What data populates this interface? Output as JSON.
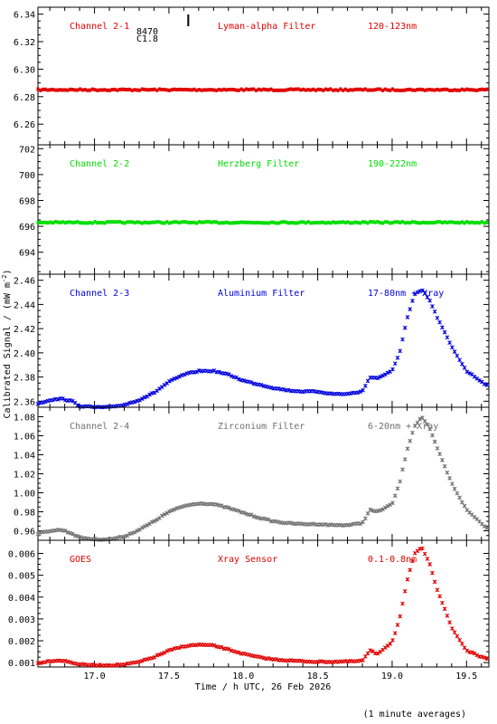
{
  "x_axis": {
    "label": "Time / h UTC, 26 Feb 2026",
    "range": [
      16.62,
      19.65
    ],
    "ticks": [
      "17.0",
      "17.5",
      "18.0",
      "18.5",
      "19.0",
      "19.5"
    ]
  },
  "y_axis_label": "Calibrated Signal / (mW m",
  "y_axis_label_exp": "-2",
  "y_axis_label_end": ")",
  "footer": "(1 minute averages)",
  "flare_marker": {
    "time": 17.63,
    "id": "8470",
    "class": "C1.8"
  },
  "panels": [
    {
      "channel": "Channel 2-1",
      "filter": "Lyman-alpha Filter",
      "band": "120-123nm",
      "color": "#e00000",
      "ylim": [
        6.245,
        6.345
      ],
      "ticks": [
        "6.26",
        "6.28",
        "6.30",
        "6.32",
        "6.34"
      ]
    },
    {
      "channel": "Channel 2-2",
      "filter": "Herzberg Filter",
      "band": "190-222nm",
      "color": "#00dd00",
      "ylim": [
        692.3,
        702.3
      ],
      "ticks": [
        "694",
        "696",
        "698",
        "700",
        "702"
      ]
    },
    {
      "channel": "Channel 2-3",
      "filter": "Aluminium Filter",
      "band": "17-80nm + Xray",
      "color": "#0000dd",
      "ylim": [
        2.355,
        2.465
      ],
      "ticks": [
        "2.36",
        "2.38",
        "2.40",
        "2.42",
        "2.44",
        "2.46"
      ]
    },
    {
      "channel": "Channel 2-4",
      "filter": "Zirconium Filter",
      "band": "6-20nm + Xray",
      "color": "#707070",
      "ylim": [
        0.95,
        1.09
      ],
      "ticks": [
        "0.96",
        "0.98",
        "1.00",
        "1.02",
        "1.04",
        "1.06",
        "1.08"
      ]
    },
    {
      "channel": "GOES",
      "filter": "Xray Sensor",
      "band": "0.1-0.8nm",
      "color": "#e00000",
      "ylim": [
        0.0008,
        0.0066
      ],
      "ticks": [
        "0.001",
        "0.002",
        "0.003",
        "0.004",
        "0.005",
        "0.006"
      ]
    }
  ],
  "chart_data": [
    {
      "type": "scatter",
      "title": "Channel 2-1",
      "ylim": [
        6.245,
        6.345
      ],
      "xlim": [
        16.62,
        19.65
      ],
      "series": [
        {
          "name": "Lyman-alpha Filter",
          "x": [
            16.62,
            17.0,
            17.5,
            18.0,
            18.5,
            19.0,
            19.65
          ],
          "y": [
            6.285,
            6.285,
            6.285,
            6.285,
            6.285,
            6.285,
            6.285
          ]
        }
      ]
    },
    {
      "type": "scatter",
      "title": "Channel 2-2",
      "ylim": [
        692.3,
        702.3
      ],
      "xlim": [
        16.62,
        19.65
      ],
      "series": [
        {
          "name": "Herzberg Filter",
          "x": [
            16.62,
            17.0,
            17.5,
            18.0,
            18.5,
            19.0,
            19.65
          ],
          "y": [
            696.3,
            696.3,
            696.3,
            696.3,
            696.3,
            696.3,
            696.3
          ]
        }
      ]
    },
    {
      "type": "scatter",
      "title": "Channel 2-3",
      "ylim": [
        2.355,
        2.465
      ],
      "xlim": [
        16.62,
        19.65
      ],
      "series": [
        {
          "name": "Aluminium Filter",
          "x": [
            16.62,
            16.7,
            16.78,
            16.85,
            16.9,
            17.0,
            17.1,
            17.2,
            17.3,
            17.4,
            17.5,
            17.6,
            17.7,
            17.8,
            17.9,
            18.0,
            18.1,
            18.2,
            18.3,
            18.4,
            18.5,
            18.6,
            18.7,
            18.8,
            18.85,
            18.9,
            19.0,
            19.05,
            19.1,
            19.15,
            19.2,
            19.25,
            19.3,
            19.4,
            19.5,
            19.65
          ],
          "y": [
            2.358,
            2.361,
            2.362,
            2.36,
            2.356,
            2.355,
            2.355,
            2.357,
            2.361,
            2.367,
            2.376,
            2.382,
            2.385,
            2.385,
            2.382,
            2.377,
            2.374,
            2.371,
            2.369,
            2.368,
            2.368,
            2.366,
            2.366,
            2.368,
            2.38,
            2.379,
            2.385,
            2.4,
            2.428,
            2.448,
            2.452,
            2.444,
            2.43,
            2.405,
            2.385,
            2.372
          ]
        }
      ]
    },
    {
      "type": "scatter",
      "title": "Channel 2-4",
      "ylim": [
        0.95,
        1.09
      ],
      "xlim": [
        16.62,
        19.65
      ],
      "series": [
        {
          "name": "Zirconium Filter",
          "x": [
            16.62,
            16.7,
            16.78,
            16.85,
            16.9,
            17.0,
            17.1,
            17.2,
            17.3,
            17.4,
            17.5,
            17.6,
            17.7,
            17.8,
            17.9,
            18.0,
            18.1,
            18.2,
            18.3,
            18.4,
            18.5,
            18.6,
            18.7,
            18.8,
            18.85,
            18.9,
            19.0,
            19.05,
            19.1,
            19.15,
            19.2,
            19.25,
            19.3,
            19.4,
            19.5,
            19.65
          ],
          "y": [
            0.957,
            0.96,
            0.961,
            0.957,
            0.953,
            0.951,
            0.951,
            0.954,
            0.961,
            0.97,
            0.98,
            0.986,
            0.989,
            0.988,
            0.984,
            0.979,
            0.974,
            0.97,
            0.968,
            0.967,
            0.967,
            0.966,
            0.966,
            0.968,
            0.982,
            0.98,
            0.988,
            1.01,
            1.045,
            1.07,
            1.08,
            1.068,
            1.048,
            1.01,
            0.982,
            0.961
          ]
        }
      ]
    },
    {
      "type": "scatter",
      "title": "GOES",
      "ylim": [
        0.0008,
        0.0066
      ],
      "xlim": [
        16.62,
        19.65
      ],
      "series": [
        {
          "name": "Xray Sensor",
          "x": [
            16.62,
            16.7,
            16.78,
            16.85,
            16.9,
            17.0,
            17.1,
            17.2,
            17.3,
            17.4,
            17.5,
            17.6,
            17.7,
            17.8,
            17.9,
            18.0,
            18.1,
            18.2,
            18.3,
            18.4,
            18.5,
            18.6,
            18.7,
            18.8,
            18.85,
            18.9,
            19.0,
            19.05,
            19.1,
            19.15,
            19.2,
            19.25,
            19.3,
            19.4,
            19.5,
            19.65
          ],
          "y": [
            0.00098,
            0.00108,
            0.0011,
            0.001,
            0.00092,
            0.00088,
            0.00088,
            0.00091,
            0.00103,
            0.00125,
            0.00155,
            0.00175,
            0.00182,
            0.00178,
            0.0016,
            0.0014,
            0.00125,
            0.00115,
            0.0011,
            0.00106,
            0.00104,
            0.00104,
            0.00105,
            0.00108,
            0.00155,
            0.0014,
            0.00195,
            0.003,
            0.0047,
            0.006,
            0.00625,
            0.0056,
            0.0044,
            0.0026,
            0.00155,
            0.00112
          ]
        }
      ]
    }
  ]
}
